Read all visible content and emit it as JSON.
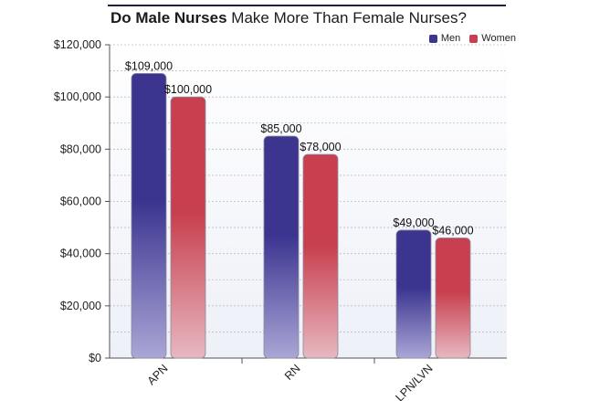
{
  "chart_data": {
    "type": "bar",
    "title_bold": "Do Male Nurses",
    "title_rest": "Make More Than Female Nurses?",
    "categories": [
      "APN",
      "RN",
      "LPN/LVN"
    ],
    "series": [
      {
        "name": "Men",
        "values": [
          109000,
          85000,
          49000
        ],
        "labels": [
          "$109,000",
          "$85,000",
          "$49,000"
        ],
        "color": "#3b3590",
        "fade_color": "#aaa6d6"
      },
      {
        "name": "Women",
        "values": [
          100000,
          78000,
          46000
        ],
        "labels": [
          "$100,000",
          "$78,000",
          "$46,000"
        ],
        "color": "#c8404f",
        "fade_color": "#e7b8c1"
      }
    ],
    "ylim": [
      0,
      120000
    ],
    "yticks": [
      0,
      20000,
      40000,
      60000,
      80000,
      100000,
      120000
    ],
    "ytick_labels": [
      "$0",
      "$20,000",
      "$40,000",
      "$60,000",
      "$80,000",
      "$100,000",
      "$120,000"
    ],
    "grid": true,
    "legend_position": "top-right"
  }
}
